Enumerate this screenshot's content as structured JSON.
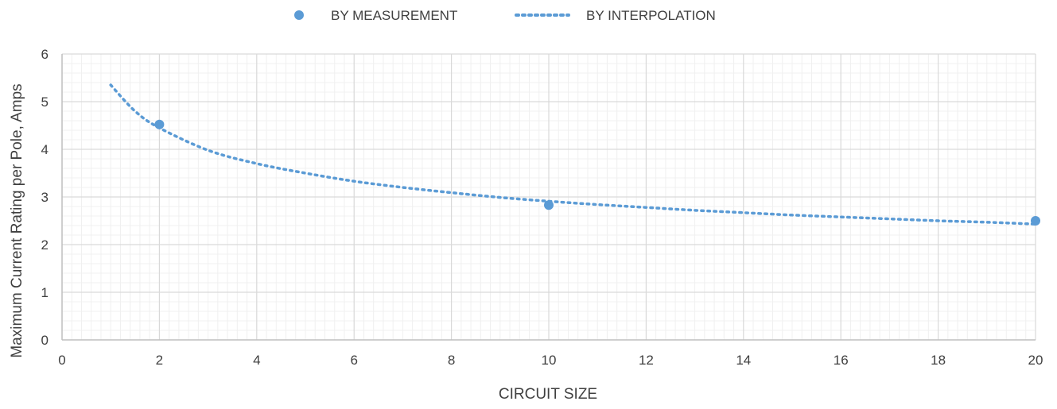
{
  "chart_data": {
    "type": "scatter",
    "title": "",
    "xlabel": "CIRCUIT SIZE",
    "ylabel": "Maximum Current Rating per Pole, Amps",
    "xlim": [
      0,
      20
    ],
    "ylim": [
      0,
      6
    ],
    "x_ticks": [
      0,
      2,
      4,
      6,
      8,
      10,
      12,
      14,
      16,
      18,
      20
    ],
    "y_ticks": [
      0,
      1,
      2,
      3,
      4,
      5,
      6
    ],
    "grid": true,
    "legend_position": "top-center",
    "series": [
      {
        "name": "BY MEASUREMENT",
        "kind": "markers",
        "color": "#5b9bd5",
        "x": [
          2,
          10,
          20
        ],
        "y": [
          4.52,
          2.83,
          2.5
        ]
      },
      {
        "name": "BY INTERPOLATION",
        "kind": "dotted-line",
        "color": "#5b9bd5",
        "x": [
          1,
          1.5,
          2,
          3,
          4,
          5,
          6,
          7,
          8,
          9,
          10,
          11,
          12,
          13,
          14,
          15,
          16,
          17,
          18,
          19,
          20
        ],
        "y": [
          5.35,
          4.8,
          4.45,
          3.98,
          3.7,
          3.5,
          3.33,
          3.2,
          3.09,
          2.99,
          2.91,
          2.84,
          2.78,
          2.72,
          2.67,
          2.62,
          2.58,
          2.54,
          2.5,
          2.47,
          2.43
        ]
      }
    ]
  }
}
